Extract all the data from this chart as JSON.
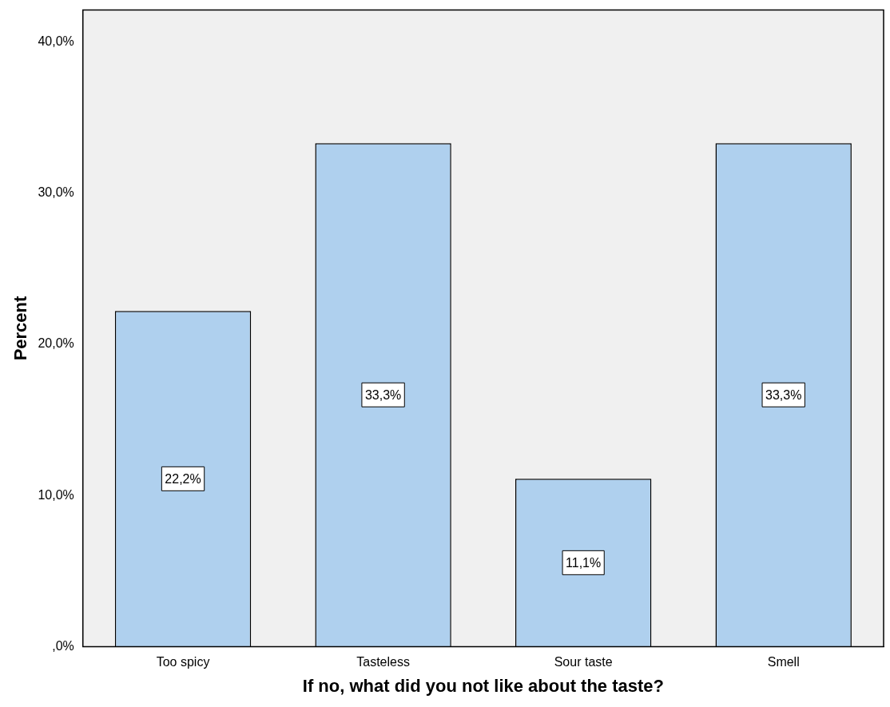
{
  "chart_data": {
    "type": "bar",
    "xlabel": "If no, what did you not like about the taste?",
    "ylabel": "Percent",
    "categories": [
      "Too spicy",
      "Tasteless",
      "Sour taste",
      "Smell"
    ],
    "values": [
      22.2,
      33.3,
      11.1,
      33.3
    ],
    "value_labels": [
      "22,2%",
      "33,3%",
      "11,1%",
      "33,3%"
    ],
    "color": "#afd0ee",
    "ylim": [
      0,
      42.1
    ],
    "yticks": [
      {
        "value": 0,
        "label": ",0%"
      },
      {
        "value": 10,
        "label": "10,0%"
      },
      {
        "value": 20,
        "label": "20,0%"
      },
      {
        "value": 30,
        "label": "30,0%"
      },
      {
        "value": 40,
        "label": "40,0%"
      }
    ],
    "grid": false,
    "legend": false
  }
}
